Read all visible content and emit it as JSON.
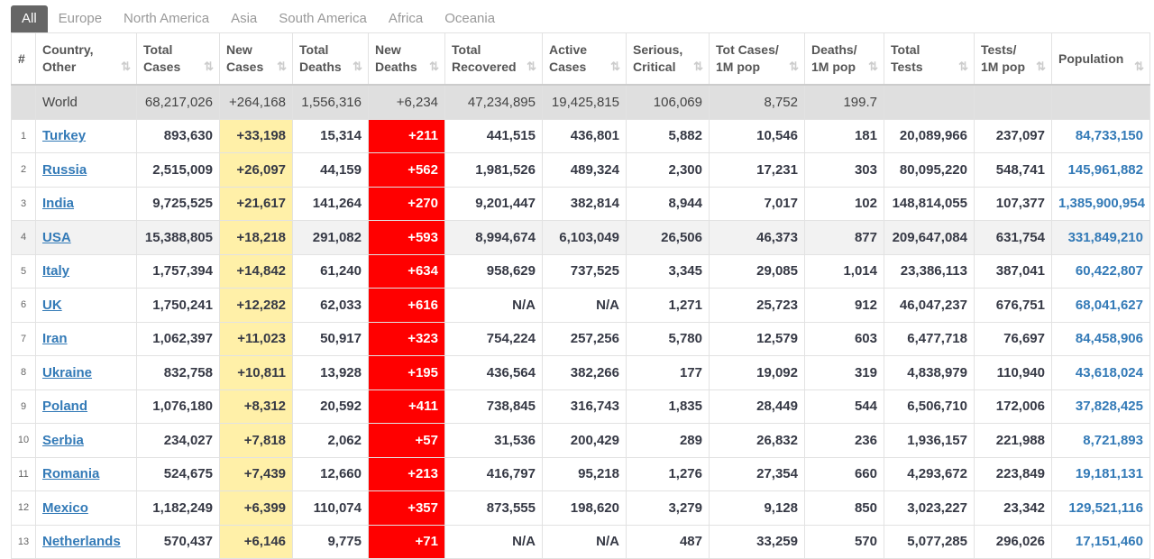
{
  "tabs": [
    "All",
    "Europe",
    "North America",
    "Asia",
    "South America",
    "Africa",
    "Oceania"
  ],
  "active_tab": 0,
  "table": {
    "headers": [
      [
        "#"
      ],
      [
        "Country,",
        "Other"
      ],
      [
        "Total",
        "Cases"
      ],
      [
        "New",
        "Cases"
      ],
      [
        "Total",
        "Deaths"
      ],
      [
        "New",
        "Deaths"
      ],
      [
        "Total",
        "Recovered"
      ],
      [
        "Active",
        "Cases"
      ],
      [
        "Serious,",
        "Critical"
      ],
      [
        "Tot Cases/",
        "1M pop"
      ],
      [
        "Deaths/",
        "1M pop"
      ],
      [
        "Total",
        "Tests"
      ],
      [
        "Tests/",
        "1M pop"
      ],
      [
        "Population"
      ]
    ],
    "world": [
      null,
      "World",
      "68,217,026",
      "+264,168",
      "1,556,316",
      "+6,234",
      "47,234,895",
      "19,425,815",
      "106,069",
      "8,752",
      "199.7",
      null,
      null,
      null
    ],
    "rows": [
      [
        1,
        "Turkey",
        "893,630",
        "+33,198",
        "15,314",
        "+211",
        "441,515",
        "436,801",
        "5,882",
        "10,546",
        "181",
        "20,089,966",
        "237,097",
        "84,733,150"
      ],
      [
        2,
        "Russia",
        "2,515,009",
        "+26,097",
        "44,159",
        "+562",
        "1,981,526",
        "489,324",
        "2,300",
        "17,231",
        "303",
        "80,095,220",
        "548,741",
        "145,961,882"
      ],
      [
        3,
        "India",
        "9,725,525",
        "+21,617",
        "141,264",
        "+270",
        "9,201,447",
        "382,814",
        "8,944",
        "7,017",
        "102",
        "148,814,055",
        "107,377",
        "1,385,900,954"
      ],
      [
        4,
        "USA",
        "15,388,805",
        "+18,218",
        "291,082",
        "+593",
        "8,994,674",
        "6,103,049",
        "26,506",
        "46,373",
        "877",
        "209,647,084",
        "631,754",
        "331,849,210"
      ],
      [
        5,
        "Italy",
        "1,757,394",
        "+14,842",
        "61,240",
        "+634",
        "958,629",
        "737,525",
        "3,345",
        "29,085",
        "1,014",
        "23,386,113",
        "387,041",
        "60,422,807"
      ],
      [
        6,
        "UK",
        "1,750,241",
        "+12,282",
        "62,033",
        "+616",
        "N/A",
        "N/A",
        "1,271",
        "25,723",
        "912",
        "46,047,237",
        "676,751",
        "68,041,627"
      ],
      [
        7,
        "Iran",
        "1,062,397",
        "+11,023",
        "50,917",
        "+323",
        "754,224",
        "257,256",
        "5,780",
        "12,579",
        "603",
        "6,477,718",
        "76,697",
        "84,458,906"
      ],
      [
        8,
        "Ukraine",
        "832,758",
        "+10,811",
        "13,928",
        "+195",
        "436,564",
        "382,266",
        "177",
        "19,092",
        "319",
        "4,838,979",
        "110,940",
        "43,618,024"
      ],
      [
        9,
        "Poland",
        "1,076,180",
        "+8,312",
        "20,592",
        "+411",
        "738,845",
        "316,743",
        "1,835",
        "28,449",
        "544",
        "6,506,710",
        "172,006",
        "37,828,425"
      ],
      [
        10,
        "Serbia",
        "234,027",
        "+7,818",
        "2,062",
        "+57",
        "31,536",
        "200,429",
        "289",
        "26,832",
        "236",
        "1,936,157",
        "221,988",
        "8,721,893"
      ],
      [
        11,
        "Romania",
        "524,675",
        "+7,439",
        "12,660",
        "+213",
        "416,797",
        "95,218",
        "1,276",
        "27,354",
        "660",
        "4,293,672",
        "223,849",
        "19,181,131"
      ],
      [
        12,
        "Mexico",
        "1,182,249",
        "+6,399",
        "110,074",
        "+357",
        "873,555",
        "198,620",
        "3,279",
        "9,128",
        "850",
        "3,023,227",
        "23,342",
        "129,521,116"
      ],
      [
        13,
        "Netherlands",
        "570,437",
        "+6,146",
        "9,775",
        "+71",
        "N/A",
        "N/A",
        "487",
        "33,259",
        "570",
        "5,077,285",
        "296,026",
        "17,151,460"
      ]
    ]
  }
}
